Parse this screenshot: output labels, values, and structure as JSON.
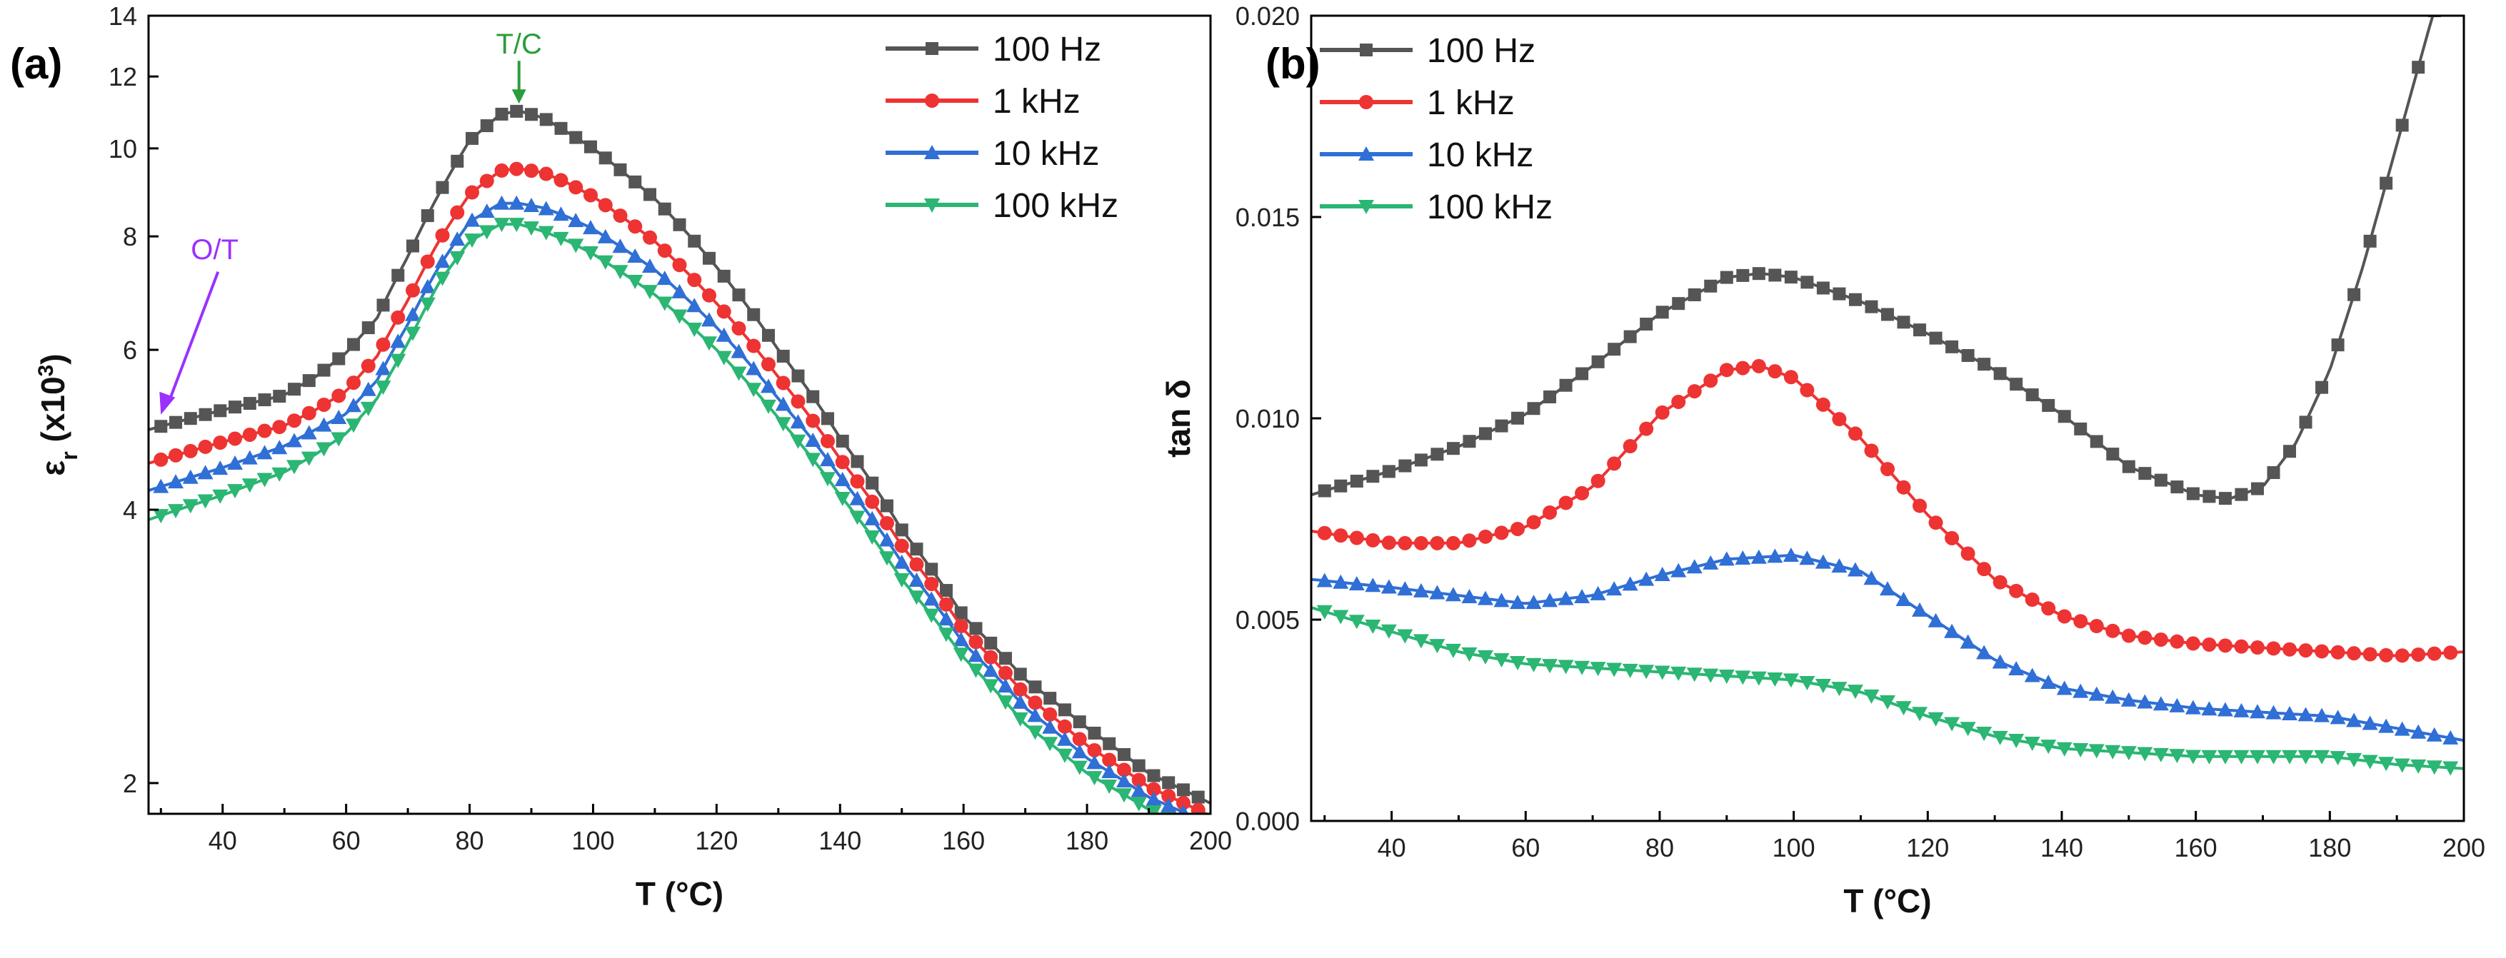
{
  "chart_data": [
    {
      "type": "line",
      "panel_label": "(a)",
      "xlabel": "T (°C)",
      "ylabel": "εr (x10³)",
      "ylabel_main": "ε",
      "ylabel_sub": "r",
      "ylabel_rest": " (x10",
      "ylabel_sup": "3",
      "ylabel_end": ")",
      "y_scale": "log",
      "xlim": [
        28,
        200
      ],
      "ylim": [
        1.85,
        14
      ],
      "x_ticks": [
        40,
        60,
        80,
        100,
        120,
        140,
        160,
        180,
        200
      ],
      "y_ticks": [
        2,
        4,
        6,
        8,
        10,
        12,
        14
      ],
      "legend_position": "top-right",
      "annotations": [
        {
          "text": "T/C",
          "x": 88,
          "y": 11.0,
          "color": "#2a9d3a"
        },
        {
          "text": "O/T",
          "x": 30,
          "y": 5.0,
          "color": "#9b30ff"
        }
      ],
      "series": [
        {
          "name": "100 Hz",
          "color": "#555555",
          "marker": "square",
          "x": [
            28,
            40,
            50,
            55,
            60,
            65,
            70,
            75,
            80,
            85,
            88,
            92,
            96,
            100,
            110,
            120,
            130,
            140,
            150,
            160,
            170,
            180,
            190,
            200
          ],
          "y": [
            4.9,
            5.15,
            5.35,
            5.6,
            5.95,
            6.5,
            7.6,
            8.9,
            10.2,
            10.9,
            11.0,
            10.8,
            10.4,
            10.0,
            8.8,
            7.4,
            6.0,
            4.8,
            3.8,
            3.05,
            2.6,
            2.3,
            2.05,
            1.9
          ]
        },
        {
          "name": "1 kHz",
          "color": "#ee3333",
          "marker": "circle",
          "x": [
            28,
            40,
            50,
            55,
            60,
            65,
            70,
            75,
            80,
            85,
            88,
            92,
            96,
            100,
            110,
            120,
            130,
            140,
            150,
            160,
            170,
            180,
            190,
            200
          ],
          "y": [
            4.5,
            4.75,
            4.95,
            5.15,
            5.4,
            5.9,
            6.8,
            7.9,
            8.9,
            9.45,
            9.5,
            9.4,
            9.15,
            8.85,
            7.9,
            6.75,
            5.6,
            4.55,
            3.65,
            2.95,
            2.5,
            2.2,
            1.98,
            1.84
          ]
        },
        {
          "name": "10 kHz",
          "color": "#2f6fd6",
          "marker": "triangle-up",
          "x": [
            28,
            40,
            50,
            55,
            60,
            65,
            70,
            75,
            80,
            85,
            88,
            92,
            96,
            100,
            110,
            120,
            130,
            140,
            150,
            160,
            170,
            180,
            190,
            200
          ],
          "y": [
            4.2,
            4.45,
            4.7,
            4.9,
            5.1,
            5.55,
            6.4,
            7.4,
            8.3,
            8.7,
            8.7,
            8.6,
            8.4,
            8.15,
            7.35,
            6.35,
            5.3,
            4.35,
            3.5,
            2.85,
            2.42,
            2.13,
            1.93,
            1.8
          ]
        },
        {
          "name": "100 kHz",
          "color": "#2bb673",
          "marker": "triangle-down",
          "x": [
            28,
            40,
            50,
            55,
            60,
            65,
            70,
            75,
            80,
            85,
            88,
            92,
            96,
            100,
            110,
            120,
            130,
            140,
            150,
            160,
            170,
            180,
            190,
            200
          ],
          "y": [
            3.9,
            4.15,
            4.4,
            4.6,
            4.85,
            5.3,
            6.1,
            7.1,
            7.9,
            8.25,
            8.25,
            8.1,
            7.9,
            7.65,
            6.9,
            6.0,
            5.05,
            4.15,
            3.35,
            2.75,
            2.32,
            2.05,
            1.87,
            1.74
          ]
        }
      ]
    },
    {
      "type": "line",
      "panel_label": "(b)",
      "xlabel": "T (°C)",
      "ylabel": "tan δ",
      "y_scale": "linear",
      "xlim": [
        28,
        200
      ],
      "ylim": [
        0,
        0.02
      ],
      "x_ticks": [
        40,
        60,
        80,
        100,
        120,
        140,
        160,
        180,
        200
      ],
      "y_ticks": [
        0.0,
        0.005,
        0.01,
        0.015,
        0.02
      ],
      "y_tick_labels": [
        "0.000",
        "0.005",
        "0.010",
        "0.015",
        "0.020"
      ],
      "x_tick_labels": [
        "40",
        "60",
        "80",
        "100",
        "120",
        "140",
        "160",
        "180",
        "200"
      ],
      "legend_position": "top-left",
      "series": [
        {
          "name": "100 Hz",
          "color": "#555555",
          "marker": "square",
          "x": [
            28,
            40,
            50,
            60,
            70,
            80,
            90,
            95,
            100,
            110,
            120,
            130,
            140,
            150,
            160,
            165,
            170,
            175,
            180,
            185,
            190,
            195,
            200
          ],
          "y": [
            0.0081,
            0.0087,
            0.0093,
            0.0101,
            0.0113,
            0.0126,
            0.0135,
            0.0136,
            0.0135,
            0.0129,
            0.0121,
            0.0112,
            0.0101,
            0.0088,
            0.0081,
            0.008,
            0.0083,
            0.0094,
            0.0112,
            0.0138,
            0.0168,
            0.0198,
            0.0225
          ]
        },
        {
          "name": "1 kHz",
          "color": "#ee3333",
          "marker": "circle",
          "x": [
            28,
            40,
            50,
            60,
            70,
            80,
            90,
            95,
            100,
            110,
            120,
            130,
            140,
            150,
            160,
            170,
            180,
            190,
            200
          ],
          "y": [
            0.0072,
            0.0069,
            0.0069,
            0.0073,
            0.0083,
            0.0101,
            0.0112,
            0.0113,
            0.011,
            0.0095,
            0.0076,
            0.006,
            0.0051,
            0.0046,
            0.0044,
            0.0043,
            0.0042,
            0.0041,
            0.0042
          ]
        },
        {
          "name": "10 kHz",
          "color": "#2f6fd6",
          "marker": "triangle-up",
          "x": [
            28,
            40,
            50,
            60,
            70,
            80,
            90,
            100,
            110,
            120,
            130,
            140,
            150,
            160,
            170,
            180,
            190,
            200
          ],
          "y": [
            0.006,
            0.0058,
            0.0056,
            0.0054,
            0.0056,
            0.0061,
            0.0065,
            0.0066,
            0.0062,
            0.0051,
            0.004,
            0.0033,
            0.003,
            0.0028,
            0.0027,
            0.0026,
            0.0023,
            0.002
          ]
        },
        {
          "name": "100 kHz",
          "color": "#2bb673",
          "marker": "triangle-down",
          "x": [
            28,
            40,
            50,
            60,
            70,
            80,
            90,
            100,
            110,
            120,
            130,
            140,
            150,
            160,
            170,
            180,
            190,
            200
          ],
          "y": [
            0.0053,
            0.0047,
            0.0042,
            0.0039,
            0.0038,
            0.0037,
            0.0036,
            0.0035,
            0.0032,
            0.0026,
            0.0021,
            0.0018,
            0.0017,
            0.0016,
            0.0016,
            0.0016,
            0.0014,
            0.0013
          ]
        }
      ]
    }
  ]
}
